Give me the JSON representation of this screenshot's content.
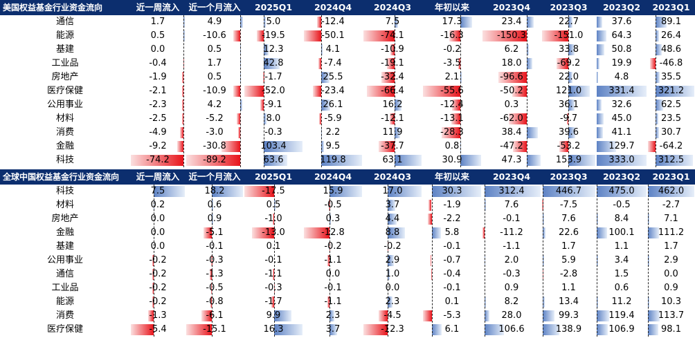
{
  "tables": [
    {
      "title": "美国权益基金行业资金流向",
      "columns": [
        "近一周流入",
        "近一个月流入",
        "2025Q1",
        "2024Q4",
        "2024Q3",
        "年初以来",
        "2023Q4",
        "2023Q3",
        "2023Q2",
        "2023Q1"
      ],
      "rows": [
        {
          "label": "通信",
          "values": [
            1.7,
            4.9,
            5.0,
            -12.4,
            7.5,
            17.3,
            23.4,
            22.7,
            37.6,
            89.1
          ]
        },
        {
          "label": "能源",
          "values": [
            0.5,
            -10.6,
            -19.5,
            -50.1,
            -74.1,
            -16.3,
            -150.3,
            -151.0,
            64.3,
            26.4
          ]
        },
        {
          "label": "基建",
          "values": [
            0.0,
            0.5,
            12.3,
            4.1,
            -10.9,
            -0.2,
            6.2,
            33.8,
            50.8,
            48.6
          ]
        },
        {
          "label": "工业品",
          "values": [
            -0.4,
            1.7,
            42.8,
            -7.4,
            -19.1,
            -3.5,
            18.0,
            -69.2,
            19.9,
            -46.8
          ]
        },
        {
          "label": "房地产",
          "values": [
            -1.9,
            0.5,
            -1.7,
            25.5,
            -32.4,
            2.1,
            -96.6,
            22.0,
            4.8,
            35.5
          ]
        },
        {
          "label": "医疗保健",
          "values": [
            -2.1,
            -10.9,
            -52.0,
            -23.4,
            -66.4,
            -55.6,
            -50.2,
            121.0,
            331.4,
            321.2
          ]
        },
        {
          "label": "公用事业",
          "values": [
            -2.3,
            4.2,
            -9.1,
            26.1,
            16.2,
            -12.4,
            0.3,
            36.1,
            32.6,
            62.5
          ]
        },
        {
          "label": "材料",
          "values": [
            -2.5,
            -5.2,
            8.0,
            -5.9,
            -12.1,
            -13.1,
            -62.0,
            -9.7,
            45.0,
            23.5
          ]
        },
        {
          "label": "消费",
          "values": [
            -4.9,
            -3.0,
            -0.3,
            2.2,
            11.9,
            -28.3,
            38.4,
            39.6,
            41.1,
            30.7
          ]
        },
        {
          "label": "金融",
          "values": [
            -9.2,
            -30.8,
            103.4,
            9.5,
            -37.7,
            0.8,
            -47.2,
            -53.2,
            129.7,
            -64.2
          ]
        },
        {
          "label": "科技",
          "values": [
            -74.2,
            -89.2,
            63.6,
            119.8,
            63.1,
            30.9,
            47.3,
            153.9,
            333.0,
            312.5
          ]
        }
      ]
    },
    {
      "title": "全球中国权益基金行业资金流向",
      "columns": [
        "近一周流入",
        "近一个月流入",
        "2025Q1",
        "2024Q4",
        "2024Q3",
        "年初以来",
        "2023Q4",
        "2023Q3",
        "2023Q2",
        "2023Q1"
      ],
      "rows": [
        {
          "label": "科技",
          "values": [
            7.5,
            18.2,
            -17.5,
            15.9,
            17.0,
            30.3,
            312.4,
            446.7,
            475.0,
            462.0
          ]
        },
        {
          "label": "材料",
          "values": [
            0.2,
            0.6,
            0.5,
            -0.5,
            3.7,
            -1.9,
            7.6,
            -7.5,
            -0.5,
            -2.7
          ]
        },
        {
          "label": "房地产",
          "values": [
            0.0,
            0.9,
            -1.0,
            0.3,
            4.4,
            -2.2,
            -0.1,
            7.6,
            8.4,
            7.1
          ]
        },
        {
          "label": "金融",
          "values": [
            0.0,
            -5.1,
            -13.0,
            -12.8,
            8.8,
            5.8,
            -11.2,
            22.6,
            100.1,
            111.2
          ]
        },
        {
          "label": "基建",
          "values": [
            0.0,
            -0.1,
            0.1,
            -0.2,
            -0.2,
            -0.1,
            -1.1,
            1.7,
            1.1,
            1.7
          ]
        },
        {
          "label": "公用事业",
          "values": [
            -0.2,
            -0.3,
            -0.1,
            -1.1,
            2.9,
            -0.7,
            2.0,
            5.9,
            3.4,
            2.9
          ]
        },
        {
          "label": "通信",
          "values": [
            -0.2,
            -1.3,
            -1.1,
            0.0,
            1.0,
            -0.4,
            -0.3,
            -2.8,
            1.5,
            0.0
          ]
        },
        {
          "label": "工业品",
          "values": [
            -0.2,
            -0.5,
            -0.3,
            -0.1,
            0.0,
            -0.1,
            0.9,
            1.1,
            0.6,
            0.9
          ]
        },
        {
          "label": "能源",
          "values": [
            -0.2,
            -0.8,
            -1.7,
            -1.1,
            2.3,
            0.1,
            8.2,
            13.4,
            11.2,
            10.3
          ]
        },
        {
          "label": "消费",
          "values": [
            -1.3,
            -6.1,
            9.9,
            2.3,
            -4.5,
            -5.3,
            28.0,
            99.3,
            119.4,
            113.7
          ]
        },
        {
          "label": "医疗保健",
          "values": [
            -5.4,
            -15.1,
            16.3,
            3.7,
            -12.3,
            6.1,
            106.6,
            138.9,
            106.9,
            98.1
          ]
        }
      ]
    }
  ],
  "colors": {
    "header_bg": "#0c2e6e",
    "negative_bar": "#e8141b",
    "positive_bar": "#5d82c4"
  }
}
